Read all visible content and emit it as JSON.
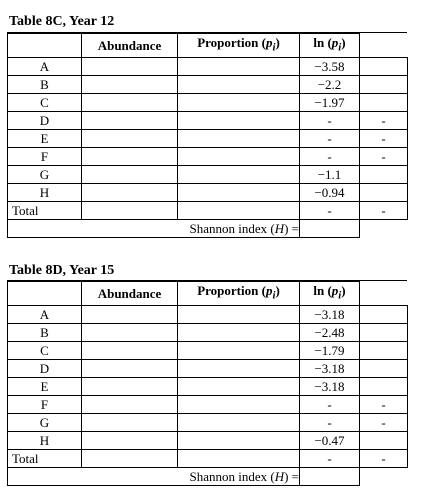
{
  "tables": [
    {
      "title": "Table 8C, Year 12",
      "headers": {
        "abundance": "Abundance",
        "proportion_prefix": "Proportion (",
        "proportion_var": "p",
        "proportion_sub": "i",
        "proportion_suffix": ")",
        "ln_prefix": "ln (",
        "ln_var": "p",
        "ln_sub": "i",
        "ln_suffix": ")"
      },
      "rows": [
        {
          "label": "A",
          "ln": "−3.58",
          "extra": ""
        },
        {
          "label": "B",
          "ln": "−2.2",
          "extra": ""
        },
        {
          "label": "C",
          "ln": "−1.97",
          "extra": ""
        },
        {
          "label": "D",
          "ln": "-",
          "extra": "-"
        },
        {
          "label": "E",
          "ln": "-",
          "extra": "-"
        },
        {
          "label": "F",
          "ln": "-",
          "extra": "-"
        },
        {
          "label": "G",
          "ln": "−1.1",
          "extra": ""
        },
        {
          "label": "H",
          "ln": "−0.94",
          "extra": ""
        },
        {
          "label": "Total",
          "ln": "-",
          "extra": "-"
        }
      ],
      "shannon_prefix": "Shannon index (",
      "shannon_var": "H",
      "shannon_suffix": ") ="
    },
    {
      "title": "Table 8D, Year 15",
      "headers": {
        "abundance": "Abundance",
        "proportion_prefix": "Proportion (",
        "proportion_var": "p",
        "proportion_sub": "i",
        "proportion_suffix": ")",
        "ln_prefix": "ln (",
        "ln_var": "p",
        "ln_sub": "i",
        "ln_suffix": ")"
      },
      "rows": [
        {
          "label": "A",
          "ln": "−3.18",
          "extra": ""
        },
        {
          "label": "B",
          "ln": "−2.48",
          "extra": ""
        },
        {
          "label": "C",
          "ln": "−1.79",
          "extra": ""
        },
        {
          "label": "D",
          "ln": "−3.18",
          "extra": ""
        },
        {
          "label": "E",
          "ln": "−3.18",
          "extra": ""
        },
        {
          "label": "F",
          "ln": "-",
          "extra": "-"
        },
        {
          "label": "G",
          "ln": "-",
          "extra": "-"
        },
        {
          "label": "H",
          "ln": "−0.47",
          "extra": ""
        },
        {
          "label": "Total",
          "ln": "-",
          "extra": "-"
        }
      ],
      "shannon_prefix": "Shannon index (",
      "shannon_var": "H",
      "shannon_suffix": ") ="
    }
  ]
}
